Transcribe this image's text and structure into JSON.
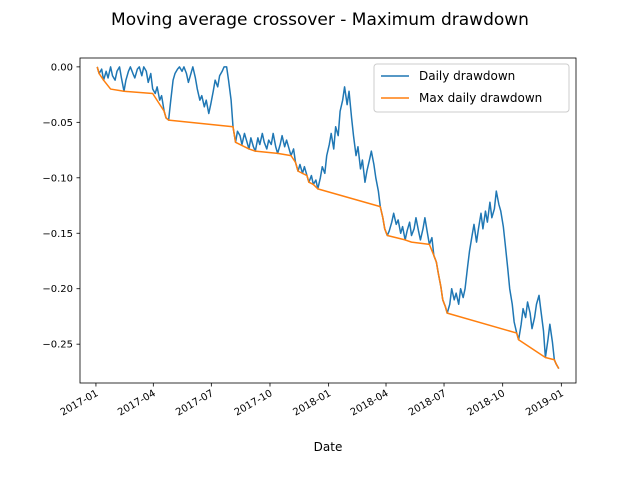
{
  "chart_data": {
    "type": "line",
    "title": "Moving average crossover - Maximum drawdown",
    "xlabel": "Date",
    "ylabel": "",
    "x_tick_labels": [
      "2017-01",
      "2017-04",
      "2017-07",
      "2017-10",
      "2018-01",
      "2018-04",
      "2018-07",
      "2018-10",
      "2019-01"
    ],
    "y_ticks": [
      0.0,
      -0.05,
      -0.1,
      -0.15,
      -0.2,
      -0.25
    ],
    "y_tick_labels": [
      "0.00",
      "−0.05",
      "−0.10",
      "−0.15",
      "−0.20",
      "−0.25"
    ],
    "xlim": [
      "2016-12-07",
      "2019-01-24"
    ],
    "ylim": [
      -0.285,
      0.008
    ],
    "grid": false,
    "legend_position": "top-right",
    "series": [
      {
        "name": "Daily drawdown",
        "color": "#1f77b4",
        "points": [
          [
            "2017-01-03",
            0.0
          ],
          [
            "2017-01-06",
            -0.006
          ],
          [
            "2017-01-10",
            -0.002
          ],
          [
            "2017-01-13",
            -0.012
          ],
          [
            "2017-01-17",
            -0.004
          ],
          [
            "2017-01-20",
            -0.01
          ],
          [
            "2017-01-24",
            0.0
          ],
          [
            "2017-01-27",
            -0.008
          ],
          [
            "2017-01-31",
            -0.012
          ],
          [
            "2017-02-03",
            -0.004
          ],
          [
            "2017-02-07",
            0.0
          ],
          [
            "2017-02-10",
            -0.01
          ],
          [
            "2017-02-14",
            -0.022
          ],
          [
            "2017-02-17",
            -0.012
          ],
          [
            "2017-02-21",
            -0.004
          ],
          [
            "2017-02-24",
            0.0
          ],
          [
            "2017-02-28",
            -0.006
          ],
          [
            "2017-03-03",
            -0.01
          ],
          [
            "2017-03-07",
            -0.002
          ],
          [
            "2017-03-10",
            0.0
          ],
          [
            "2017-03-14",
            -0.008
          ],
          [
            "2017-03-17",
            0.0
          ],
          [
            "2017-03-21",
            -0.004
          ],
          [
            "2017-03-24",
            -0.014
          ],
          [
            "2017-03-28",
            -0.006
          ],
          [
            "2017-03-31",
            -0.02
          ],
          [
            "2017-04-04",
            -0.024
          ],
          [
            "2017-04-07",
            -0.018
          ],
          [
            "2017-04-11",
            -0.03
          ],
          [
            "2017-04-14",
            -0.026
          ],
          [
            "2017-04-18",
            -0.04
          ],
          [
            "2017-04-21",
            -0.046
          ],
          [
            "2017-04-25",
            -0.048
          ],
          [
            "2017-04-28",
            -0.032
          ],
          [
            "2017-05-02",
            -0.012
          ],
          [
            "2017-05-05",
            -0.006
          ],
          [
            "2017-05-09",
            -0.002
          ],
          [
            "2017-05-12",
            0.0
          ],
          [
            "2017-05-16",
            -0.004
          ],
          [
            "2017-05-19",
            0.0
          ],
          [
            "2017-05-23",
            -0.006
          ],
          [
            "2017-05-26",
            -0.014
          ],
          [
            "2017-05-30",
            -0.006
          ],
          [
            "2017-06-02",
            0.0
          ],
          [
            "2017-06-06",
            -0.01
          ],
          [
            "2017-06-09",
            -0.02
          ],
          [
            "2017-06-13",
            -0.03
          ],
          [
            "2017-06-16",
            -0.026
          ],
          [
            "2017-06-20",
            -0.036
          ],
          [
            "2017-06-23",
            -0.03
          ],
          [
            "2017-06-27",
            -0.042
          ],
          [
            "2017-06-30",
            -0.034
          ],
          [
            "2017-07-04",
            -0.022
          ],
          [
            "2017-07-07",
            -0.012
          ],
          [
            "2017-07-11",
            -0.018
          ],
          [
            "2017-07-14",
            -0.008
          ],
          [
            "2017-07-18",
            -0.004
          ],
          [
            "2017-07-21",
            0.0
          ],
          [
            "2017-07-25",
            0.0
          ],
          [
            "2017-07-28",
            -0.012
          ],
          [
            "2017-08-01",
            -0.03
          ],
          [
            "2017-08-04",
            -0.054
          ],
          [
            "2017-08-08",
            -0.068
          ],
          [
            "2017-08-11",
            -0.058
          ],
          [
            "2017-08-15",
            -0.062
          ],
          [
            "2017-08-18",
            -0.07
          ],
          [
            "2017-08-22",
            -0.06
          ],
          [
            "2017-08-25",
            -0.066
          ],
          [
            "2017-08-29",
            -0.074
          ],
          [
            "2017-09-01",
            -0.064
          ],
          [
            "2017-09-05",
            -0.072
          ],
          [
            "2017-09-08",
            -0.076
          ],
          [
            "2017-09-12",
            -0.064
          ],
          [
            "2017-09-15",
            -0.07
          ],
          [
            "2017-09-19",
            -0.06
          ],
          [
            "2017-09-22",
            -0.068
          ],
          [
            "2017-09-26",
            -0.074
          ],
          [
            "2017-09-29",
            -0.066
          ],
          [
            "2017-10-03",
            -0.07
          ],
          [
            "2017-10-06",
            -0.06
          ],
          [
            "2017-10-10",
            -0.072
          ],
          [
            "2017-10-13",
            -0.078
          ],
          [
            "2017-10-17",
            -0.07
          ],
          [
            "2017-10-20",
            -0.062
          ],
          [
            "2017-10-24",
            -0.072
          ],
          [
            "2017-10-27",
            -0.066
          ],
          [
            "2017-10-31",
            -0.074
          ],
          [
            "2017-11-03",
            -0.08
          ],
          [
            "2017-11-07",
            -0.074
          ],
          [
            "2017-11-10",
            -0.086
          ],
          [
            "2017-11-14",
            -0.094
          ],
          [
            "2017-11-17",
            -0.088
          ],
          [
            "2017-11-21",
            -0.096
          ],
          [
            "2017-11-24",
            -0.09
          ],
          [
            "2017-11-28",
            -0.098
          ],
          [
            "2017-12-01",
            -0.104
          ],
          [
            "2017-12-05",
            -0.098
          ],
          [
            "2017-12-08",
            -0.106
          ],
          [
            "2017-12-12",
            -0.102
          ],
          [
            "2017-12-15",
            -0.11
          ],
          [
            "2017-12-19",
            -0.1
          ],
          [
            "2017-12-22",
            -0.09
          ],
          [
            "2017-12-26",
            -0.096
          ],
          [
            "2017-12-29",
            -0.08
          ],
          [
            "2018-01-02",
            -0.07
          ],
          [
            "2018-01-05",
            -0.06
          ],
          [
            "2018-01-09",
            -0.074
          ],
          [
            "2018-01-12",
            -0.054
          ],
          [
            "2018-01-16",
            -0.062
          ],
          [
            "2018-01-19",
            -0.04
          ],
          [
            "2018-01-23",
            -0.03
          ],
          [
            "2018-01-26",
            -0.018
          ],
          [
            "2018-01-30",
            -0.034
          ],
          [
            "2018-02-02",
            -0.022
          ],
          [
            "2018-02-06",
            -0.046
          ],
          [
            "2018-02-09",
            -0.062
          ],
          [
            "2018-02-13",
            -0.08
          ],
          [
            "2018-02-16",
            -0.072
          ],
          [
            "2018-02-20",
            -0.092
          ],
          [
            "2018-02-23",
            -0.084
          ],
          [
            "2018-02-27",
            -0.104
          ],
          [
            "2018-03-02",
            -0.094
          ],
          [
            "2018-03-06",
            -0.084
          ],
          [
            "2018-03-09",
            -0.076
          ],
          [
            "2018-03-13",
            -0.088
          ],
          [
            "2018-03-16",
            -0.1
          ],
          [
            "2018-03-20",
            -0.112
          ],
          [
            "2018-03-23",
            -0.126
          ],
          [
            "2018-03-27",
            -0.136
          ],
          [
            "2018-03-30",
            -0.146
          ],
          [
            "2018-04-03",
            -0.152
          ],
          [
            "2018-04-06",
            -0.148
          ],
          [
            "2018-04-10",
            -0.14
          ],
          [
            "2018-04-13",
            -0.132
          ],
          [
            "2018-04-17",
            -0.142
          ],
          [
            "2018-04-20",
            -0.138
          ],
          [
            "2018-04-24",
            -0.15
          ],
          [
            "2018-04-27",
            -0.144
          ],
          [
            "2018-05-01",
            -0.156
          ],
          [
            "2018-05-04",
            -0.148
          ],
          [
            "2018-05-08",
            -0.14
          ],
          [
            "2018-05-11",
            -0.152
          ],
          [
            "2018-05-15",
            -0.146
          ],
          [
            "2018-05-18",
            -0.136
          ],
          [
            "2018-05-22",
            -0.148
          ],
          [
            "2018-05-25",
            -0.156
          ],
          [
            "2018-05-29",
            -0.146
          ],
          [
            "2018-06-01",
            -0.136
          ],
          [
            "2018-06-05",
            -0.15
          ],
          [
            "2018-06-08",
            -0.16
          ],
          [
            "2018-06-12",
            -0.154
          ],
          [
            "2018-06-15",
            -0.17
          ],
          [
            "2018-06-19",
            -0.176
          ],
          [
            "2018-06-22",
            -0.186
          ],
          [
            "2018-06-26",
            -0.198
          ],
          [
            "2018-06-29",
            -0.21
          ],
          [
            "2018-07-03",
            -0.216
          ],
          [
            "2018-07-06",
            -0.222
          ],
          [
            "2018-07-10",
            -0.214
          ],
          [
            "2018-07-13",
            -0.2
          ],
          [
            "2018-07-17",
            -0.21
          ],
          [
            "2018-07-20",
            -0.204
          ],
          [
            "2018-07-24",
            -0.214
          ],
          [
            "2018-07-27",
            -0.2
          ],
          [
            "2018-07-31",
            -0.208
          ],
          [
            "2018-08-03",
            -0.2
          ],
          [
            "2018-08-07",
            -0.18
          ],
          [
            "2018-08-10",
            -0.166
          ],
          [
            "2018-08-14",
            -0.152
          ],
          [
            "2018-08-17",
            -0.142
          ],
          [
            "2018-08-21",
            -0.158
          ],
          [
            "2018-08-24",
            -0.146
          ],
          [
            "2018-08-28",
            -0.132
          ],
          [
            "2018-08-31",
            -0.146
          ],
          [
            "2018-09-04",
            -0.13
          ],
          [
            "2018-09-07",
            -0.14
          ],
          [
            "2018-09-11",
            -0.122
          ],
          [
            "2018-09-14",
            -0.136
          ],
          [
            "2018-09-18",
            -0.128
          ],
          [
            "2018-09-21",
            -0.112
          ],
          [
            "2018-09-25",
            -0.124
          ],
          [
            "2018-09-28",
            -0.13
          ],
          [
            "2018-10-02",
            -0.144
          ],
          [
            "2018-10-05",
            -0.16
          ],
          [
            "2018-10-09",
            -0.182
          ],
          [
            "2018-10-12",
            -0.2
          ],
          [
            "2018-10-16",
            -0.214
          ],
          [
            "2018-10-19",
            -0.23
          ],
          [
            "2018-10-23",
            -0.24
          ],
          [
            "2018-10-26",
            -0.246
          ],
          [
            "2018-10-30",
            -0.232
          ],
          [
            "2018-11-02",
            -0.218
          ],
          [
            "2018-11-06",
            -0.226
          ],
          [
            "2018-11-09",
            -0.212
          ],
          [
            "2018-11-13",
            -0.222
          ],
          [
            "2018-11-16",
            -0.236
          ],
          [
            "2018-11-20",
            -0.226
          ],
          [
            "2018-11-23",
            -0.214
          ],
          [
            "2018-11-27",
            -0.206
          ],
          [
            "2018-11-30",
            -0.22
          ],
          [
            "2018-12-04",
            -0.238
          ],
          [
            "2018-12-07",
            -0.262
          ],
          [
            "2018-12-11",
            -0.246
          ],
          [
            "2018-12-14",
            -0.232
          ],
          [
            "2018-12-18",
            -0.248
          ],
          [
            "2018-12-21",
            -0.264
          ],
          [
            "2018-12-24",
            -0.268
          ],
          [
            "2018-12-28",
            -0.272
          ]
        ]
      },
      {
        "name": "Max daily drawdown",
        "color": "#ff7f0e",
        "points": [
          [
            "2017-01-03",
            0.0
          ],
          [
            "2017-01-06",
            -0.006
          ],
          [
            "2017-01-13",
            -0.012
          ],
          [
            "2017-01-24",
            -0.02
          ],
          [
            "2017-02-14",
            -0.022
          ],
          [
            "2017-03-31",
            -0.024
          ],
          [
            "2017-04-18",
            -0.04
          ],
          [
            "2017-04-21",
            -0.046
          ],
          [
            "2017-04-25",
            -0.048
          ],
          [
            "2017-08-04",
            -0.054
          ],
          [
            "2017-08-08",
            -0.068
          ],
          [
            "2017-08-29",
            -0.074
          ],
          [
            "2017-09-08",
            -0.076
          ],
          [
            "2017-10-13",
            -0.078
          ],
          [
            "2017-11-03",
            -0.08
          ],
          [
            "2017-11-10",
            -0.086
          ],
          [
            "2017-11-14",
            -0.094
          ],
          [
            "2017-11-21",
            -0.096
          ],
          [
            "2017-11-28",
            -0.098
          ],
          [
            "2017-12-01",
            -0.104
          ],
          [
            "2017-12-08",
            -0.106
          ],
          [
            "2017-12-15",
            -0.11
          ],
          [
            "2018-03-23",
            -0.126
          ],
          [
            "2018-03-27",
            -0.136
          ],
          [
            "2018-03-30",
            -0.146
          ],
          [
            "2018-04-03",
            -0.152
          ],
          [
            "2018-05-01",
            -0.156
          ],
          [
            "2018-05-11",
            -0.158
          ],
          [
            "2018-06-08",
            -0.16
          ],
          [
            "2018-06-15",
            -0.17
          ],
          [
            "2018-06-19",
            -0.176
          ],
          [
            "2018-06-22",
            -0.186
          ],
          [
            "2018-06-26",
            -0.198
          ],
          [
            "2018-06-29",
            -0.21
          ],
          [
            "2018-07-03",
            -0.216
          ],
          [
            "2018-07-06",
            -0.222
          ],
          [
            "2018-10-23",
            -0.24
          ],
          [
            "2018-10-26",
            -0.246
          ],
          [
            "2018-12-07",
            -0.262
          ],
          [
            "2018-12-21",
            -0.264
          ],
          [
            "2018-12-24",
            -0.268
          ],
          [
            "2018-12-28",
            -0.272
          ]
        ]
      }
    ]
  }
}
